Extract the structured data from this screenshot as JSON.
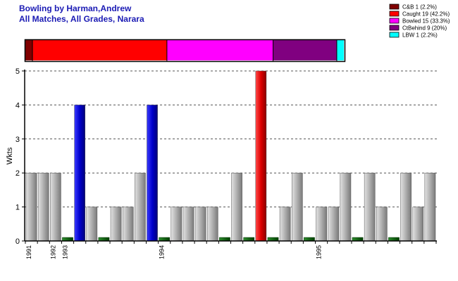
{
  "chart_data": {
    "type": "bar",
    "title": [
      "Bowling by Harman,Andrew",
      "All Matches, All Grades, Narara"
    ],
    "ylabel": "Wkts",
    "ylim": [
      0,
      5
    ],
    "yticks": [
      "0",
      "1",
      "2",
      "3",
      "4",
      "5"
    ],
    "grid": true,
    "legend_position": "top-right",
    "dismissal_summary": [
      {
        "label": "C&B 1 (2.2%)",
        "count": 1,
        "color": "#800000"
      },
      {
        "label": "Caught 19 (42.2%)",
        "count": 19,
        "color": "#ff0000"
      },
      {
        "label": "Bowled 15 (33.3%)",
        "count": 15,
        "color": "#ff00ff"
      },
      {
        "label": "CtBehind 9 (20%)",
        "count": 9,
        "color": "#800080"
      },
      {
        "label": "LBW 1 (2.2%)",
        "count": 1,
        "color": "#00ffff"
      }
    ],
    "season_labels": [
      {
        "label": "1991",
        "index": 0
      },
      {
        "label": "1992",
        "index": 2
      },
      {
        "label": "1993",
        "index": 3
      },
      {
        "label": "1994",
        "index": 11
      },
      {
        "label": "1995",
        "index": 24
      }
    ],
    "bar_colors": {
      "gray": "#a0a0a0",
      "blue": "#0000cc",
      "red": "#dd0000",
      "green": "#006400"
    },
    "bars": [
      {
        "value": 2,
        "color": "gray"
      },
      {
        "value": 2,
        "color": "gray"
      },
      {
        "value": 2,
        "color": "gray"
      },
      {
        "value": 0,
        "color": "green"
      },
      {
        "value": 4,
        "color": "blue"
      },
      {
        "value": 1,
        "color": "gray"
      },
      {
        "value": 0,
        "color": "green"
      },
      {
        "value": 1,
        "color": "gray"
      },
      {
        "value": 1,
        "color": "gray"
      },
      {
        "value": 2,
        "color": "gray"
      },
      {
        "value": 4,
        "color": "blue"
      },
      {
        "value": 0,
        "color": "green"
      },
      {
        "value": 1,
        "color": "gray"
      },
      {
        "value": 1,
        "color": "gray"
      },
      {
        "value": 1,
        "color": "gray"
      },
      {
        "value": 1,
        "color": "gray"
      },
      {
        "value": 0,
        "color": "green"
      },
      {
        "value": 2,
        "color": "gray"
      },
      {
        "value": 0,
        "color": "green"
      },
      {
        "value": 5,
        "color": "red"
      },
      {
        "value": 0,
        "color": "green"
      },
      {
        "value": 1,
        "color": "gray"
      },
      {
        "value": 2,
        "color": "gray"
      },
      {
        "value": 0,
        "color": "green"
      },
      {
        "value": 1,
        "color": "gray"
      },
      {
        "value": 1,
        "color": "gray"
      },
      {
        "value": 2,
        "color": "gray"
      },
      {
        "value": 0,
        "color": "green"
      },
      {
        "value": 2,
        "color": "gray"
      },
      {
        "value": 1,
        "color": "gray"
      },
      {
        "value": 0,
        "color": "green"
      },
      {
        "value": 2,
        "color": "gray"
      },
      {
        "value": 1,
        "color": "gray"
      },
      {
        "value": 2,
        "color": "gray"
      }
    ]
  }
}
